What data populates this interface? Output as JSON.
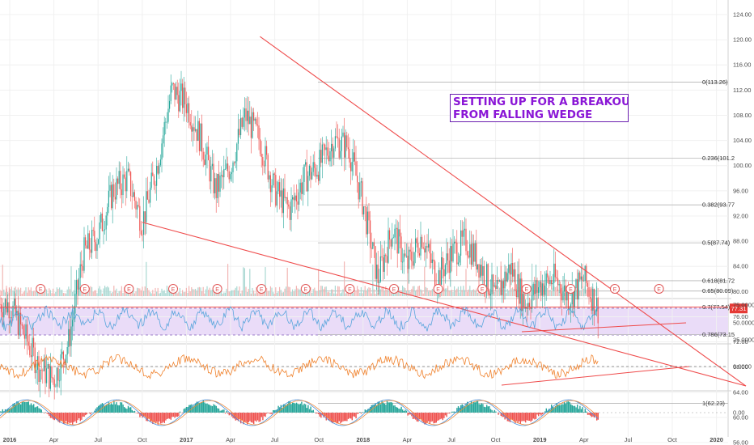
{
  "chart_data": {
    "type": "candlestick",
    "title": "",
    "annotation": [
      "SETTING UP FOR A BREAKOUT",
      "FROM FALLING WEDGE"
    ],
    "x_ticks": [
      "2016",
      "Apr",
      "Jul",
      "Oct",
      "2017",
      "Apr",
      "Jul",
      "Oct",
      "2018",
      "Apr",
      "Jul",
      "Oct",
      "2019",
      "Apr",
      "Jul",
      "Oct",
      "2020"
    ],
    "y_ticks": [
      "124.00",
      "120.00",
      "116.00",
      "112.00",
      "108.00",
      "104.00",
      "100.00",
      "96.00",
      "92.00",
      "88.00",
      "84.00",
      "80.00",
      "76.00",
      "72.00",
      "68.00",
      "64.00",
      "60.00",
      "56.00"
    ],
    "ylim": [
      56,
      126
    ],
    "last_price": "77.31",
    "fib_levels": [
      {
        "label": "0(113.26)",
        "value": 113.26
      },
      {
        "label": "0.236(101.2",
        "value": 101.2
      },
      {
        "label": "0.382(93.77",
        "value": 93.77
      },
      {
        "label": "0.5(87.74)",
        "value": 87.74
      },
      {
        "label": "0.618(81.72",
        "value": 81.72
      },
      {
        "label": "0.65(80.09)",
        "value": 80.09
      },
      {
        "label": "0.7(77.54)",
        "value": 77.54
      },
      {
        "label": "0.786(73.15",
        "value": 73.15
      },
      {
        "label": "1(62.23)",
        "value": 62.23
      }
    ],
    "earnings_marker": "E",
    "horizontal_line": 77.54,
    "wedge_lines": [
      {
        "from": [
          "2017-06",
          120.5
        ],
        "to": [
          "2020-03",
          65
        ]
      },
      {
        "from": [
          "2016-10",
          91
        ],
        "to": [
          "2020-03",
          65
        ]
      }
    ],
    "price_path": [
      [
        "2016-01",
        78
      ],
      [
        "2016-02",
        73
      ],
      [
        "2016-03",
        68
      ],
      [
        "2016-04",
        66
      ],
      [
        "2016-05",
        72
      ],
      [
        "2016-06",
        86
      ],
      [
        "2016-07",
        89
      ],
      [
        "2016-08",
        96
      ],
      [
        "2016-09",
        98
      ],
      [
        "2016-10",
        91
      ],
      [
        "2016-11",
        100
      ],
      [
        "2016-12",
        112
      ],
      [
        "2017-01",
        110
      ],
      [
        "2017-02",
        104
      ],
      [
        "2017-03",
        96
      ],
      [
        "2017-04",
        100
      ],
      [
        "2017-05",
        108
      ],
      [
        "2017-06",
        104
      ],
      [
        "2017-07",
        96
      ],
      [
        "2017-08",
        93
      ],
      [
        "2017-09",
        98
      ],
      [
        "2017-10",
        100
      ],
      [
        "2017-11",
        104
      ],
      [
        "2017-12",
        103
      ],
      [
        "2018-01",
        94
      ],
      [
        "2018-02",
        82
      ],
      [
        "2018-03",
        90
      ],
      [
        "2018-04",
        84
      ],
      [
        "2018-05",
        89
      ],
      [
        "2018-06",
        82
      ],
      [
        "2018-07",
        86
      ],
      [
        "2018-08",
        88
      ],
      [
        "2018-09",
        84
      ],
      [
        "2018-10",
        79
      ],
      [
        "2018-11",
        84
      ],
      [
        "2018-12",
        78
      ],
      [
        "2019-01",
        81
      ],
      [
        "2019-02",
        82
      ],
      [
        "2019-03",
        79
      ],
      [
        "2019-04",
        82
      ],
      [
        "2019-05",
        77
      ]
    ],
    "indicators": [
      {
        "name": "",
        "type": "line",
        "y_ticks": [
          "75.0000",
          "50.0000",
          "25.0000"
        ],
        "band": [
          30,
          70
        ]
      },
      {
        "name": "",
        "type": "line",
        "y_ticks": [
          "0.0000"
        ]
      },
      {
        "name": "",
        "type": "histogram",
        "y_ticks": [
          "0.00"
        ]
      }
    ],
    "colors": {
      "up": "#26a69a",
      "down": "#ef5350",
      "trend": "#ef4b4b",
      "rsi": "#5aa6dc",
      "osc": "#f0822d",
      "band": "#eadcf8"
    }
  }
}
